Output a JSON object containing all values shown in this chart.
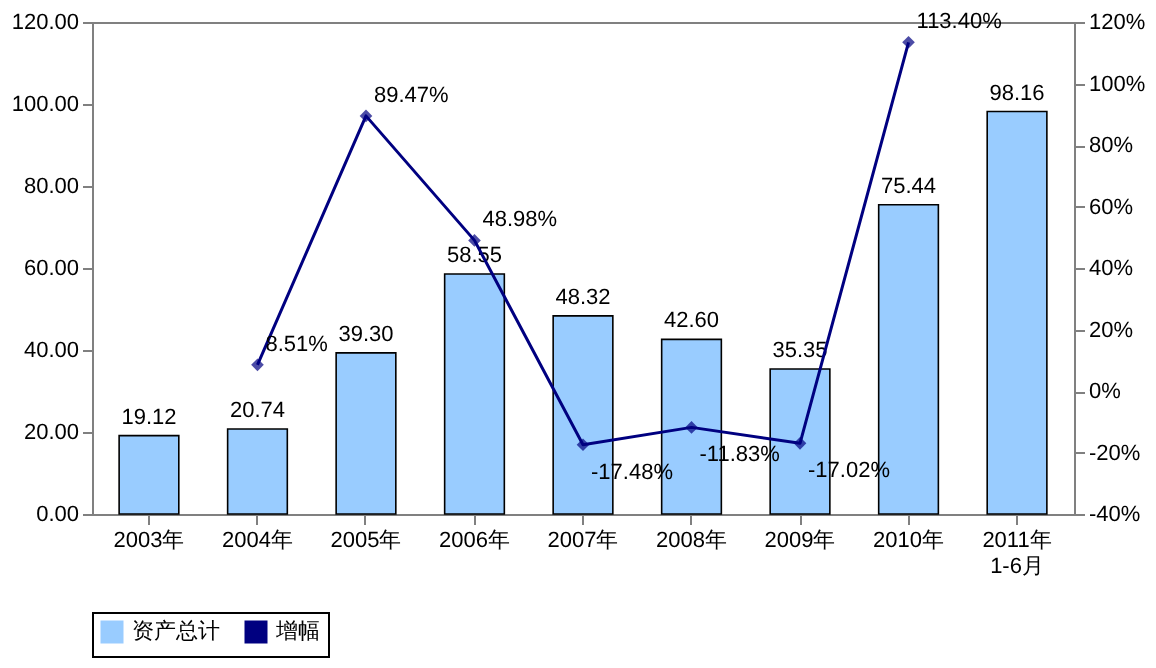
{
  "chart_data": {
    "type": "bar",
    "categories": [
      "2003年",
      "2004年",
      "2005年",
      "2006年",
      "2007年",
      "2008年",
      "2009年",
      "2010年",
      "2011年\n1-6月"
    ],
    "series": [
      {
        "name": "资产总计",
        "type": "bar",
        "color": "#99ccff",
        "values": [
          19.12,
          20.74,
          39.3,
          58.55,
          48.32,
          42.6,
          35.35,
          75.44,
          98.16
        ],
        "value_labels": [
          "19.12",
          "20.74",
          "39.30",
          "58.55",
          "48.32",
          "42.60",
          "35.35",
          "75.44",
          "98.16"
        ]
      },
      {
        "name": "增幅",
        "type": "line",
        "axis": "y2",
        "color": "#000080",
        "marker": "diamond",
        "values": [
          null,
          8.51,
          89.47,
          48.98,
          -17.48,
          -11.83,
          -17.02,
          113.4,
          null
        ],
        "value_labels": [
          null,
          "8.51%",
          "89.47%",
          "48.98%",
          "-17.48%",
          "-11.83%",
          "-17.02%",
          "113.40%",
          null
        ]
      }
    ],
    "ylim": [
      0,
      120
    ],
    "yticks": [
      {
        "value": 0,
        "label": "0.00"
      },
      {
        "value": 20,
        "label": "20.00"
      },
      {
        "value": 40,
        "label": "40.00"
      },
      {
        "value": 60,
        "label": "60.00"
      },
      {
        "value": 80,
        "label": "80.00"
      },
      {
        "value": 100,
        "label": "100.00"
      },
      {
        "value": 120,
        "label": "120.00"
      }
    ],
    "y2lim": [
      -40,
      120
    ],
    "y2ticks": [
      {
        "value": -40,
        "label": "-40%"
      },
      {
        "value": -20,
        "label": "-20%"
      },
      {
        "value": 0,
        "label": "0%"
      },
      {
        "value": 20,
        "label": "20%"
      },
      {
        "value": 40,
        "label": "40%"
      },
      {
        "value": 60,
        "label": "60%"
      },
      {
        "value": 80,
        "label": "80%"
      },
      {
        "value": 100,
        "label": "100%"
      },
      {
        "value": 120,
        "label": "120%"
      }
    ],
    "grid": false,
    "legend": "bottom"
  }
}
